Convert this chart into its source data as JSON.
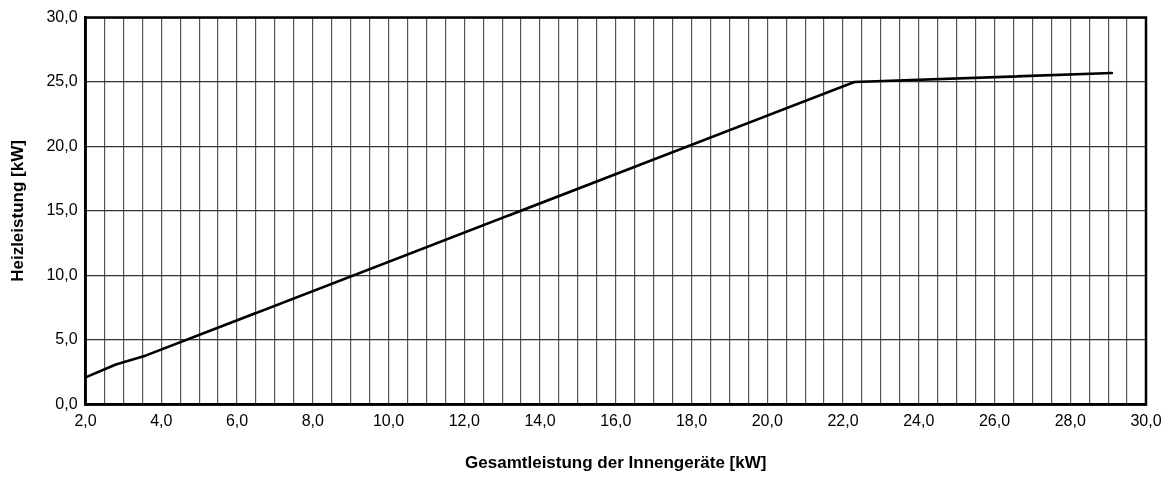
{
  "chart_data": {
    "type": "line",
    "xlabel": "Gesamtleistung der Innengeräte [kW]",
    "ylabel": "Heizleistung [kW]",
    "x": [
      2.0,
      2.8,
      3.6,
      22.3,
      29.1
    ],
    "series": [
      {
        "color": "#000000",
        "values": [
          2.1,
          3.1,
          3.8,
          25.0,
          25.7
        ]
      }
    ],
    "xlim": [
      2,
      30
    ],
    "ylim": [
      0,
      30
    ],
    "xticks": [
      {
        "value": 2,
        "label": "2,0"
      },
      {
        "value": 2.5,
        "label": null
      },
      {
        "value": 3,
        "label": null
      },
      {
        "value": 3.5,
        "label": null
      },
      {
        "value": 4,
        "label": "4,0"
      },
      {
        "value": 4.5,
        "label": null
      },
      {
        "value": 5,
        "label": null
      },
      {
        "value": 5.5,
        "label": null
      },
      {
        "value": 6,
        "label": "6,0"
      },
      {
        "value": 6.5,
        "label": null
      },
      {
        "value": 7,
        "label": null
      },
      {
        "value": 7.5,
        "label": null
      },
      {
        "value": 8,
        "label": "8,0"
      },
      {
        "value": 8.5,
        "label": null
      },
      {
        "value": 9,
        "label": null
      },
      {
        "value": 9.5,
        "label": null
      },
      {
        "value": 10,
        "label": "10,0"
      },
      {
        "value": 10.5,
        "label": null
      },
      {
        "value": 11,
        "label": null
      },
      {
        "value": 11.5,
        "label": null
      },
      {
        "value": 12,
        "label": "12,0"
      },
      {
        "value": 12.5,
        "label": null
      },
      {
        "value": 13,
        "label": null
      },
      {
        "value": 13.5,
        "label": null
      },
      {
        "value": 14,
        "label": "14,0"
      },
      {
        "value": 14.5,
        "label": null
      },
      {
        "value": 15,
        "label": null
      },
      {
        "value": 15.5,
        "label": null
      },
      {
        "value": 16,
        "label": "16,0"
      },
      {
        "value": 16.5,
        "label": null
      },
      {
        "value": 17,
        "label": null
      },
      {
        "value": 17.5,
        "label": null
      },
      {
        "value": 18,
        "label": "18,0"
      },
      {
        "value": 18.5,
        "label": null
      },
      {
        "value": 19,
        "label": null
      },
      {
        "value": 19.5,
        "label": null
      },
      {
        "value": 20,
        "label": "20,0"
      },
      {
        "value": 20.5,
        "label": null
      },
      {
        "value": 21,
        "label": null
      },
      {
        "value": 21.5,
        "label": null
      },
      {
        "value": 22,
        "label": "22,0"
      },
      {
        "value": 22.5,
        "label": null
      },
      {
        "value": 23,
        "label": null
      },
      {
        "value": 23.5,
        "label": null
      },
      {
        "value": 24,
        "label": "24,0"
      },
      {
        "value": 24.5,
        "label": null
      },
      {
        "value": 25,
        "label": null
      },
      {
        "value": 25.5,
        "label": null
      },
      {
        "value": 26,
        "label": "26,0"
      },
      {
        "value": 26.5,
        "label": null
      },
      {
        "value": 27,
        "label": null
      },
      {
        "value": 27.5,
        "label": null
      },
      {
        "value": 28,
        "label": "28,0"
      },
      {
        "value": 28.5,
        "label": null
      },
      {
        "value": 29,
        "label": null
      },
      {
        "value": 29.5,
        "label": null
      },
      {
        "value": 30,
        "label": "30,0"
      }
    ],
    "yticks": [
      {
        "value": 0,
        "label": "0,0"
      },
      {
        "value": 5,
        "label": "5,0"
      },
      {
        "value": 10,
        "label": "10,0"
      },
      {
        "value": 15,
        "label": "15,0"
      },
      {
        "value": 20,
        "label": "20,0"
      },
      {
        "value": 25,
        "label": "25,0"
      },
      {
        "value": 30,
        "label": "30,0"
      }
    ],
    "grid": true,
    "legend": false,
    "marker": "none",
    "line_style": "solid"
  }
}
